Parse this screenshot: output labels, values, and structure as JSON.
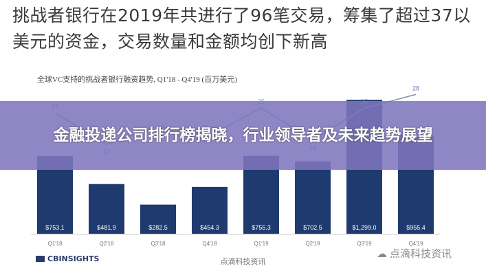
{
  "headline": "挑战者银行在2019年共进行了96笔交易，筹集了超过37以美元的资金，交易数量和金额均创下新高",
  "banner": "金融投递公司排行榜揭晓，行业领导者及未来趋势展望",
  "logo": "CBINSIGHTS",
  "center_watermark": "点滴科技资讯",
  "watermark": "点滴科技资讯",
  "chart_data": {
    "type": "bar",
    "title": "全球VC支持的挑战者银行融资趋势, Q1'18 - Q4'19 (百万美元)",
    "categories": [
      "Q1'18",
      "Q2'18",
      "Q3'18",
      "Q4'18",
      "Q1'19",
      "Q2'19",
      "Q3'19",
      "Q4'19"
    ],
    "series": [
      {
        "type": "bar",
        "values": [
          753.1,
          481.9,
          282.5,
          454.3,
          755.3,
          702.5,
          1299.0,
          955.4
        ],
        "labels": [
          "$753.1",
          "$481.9",
          "$282.5",
          "$454.3",
          "$755.3",
          "$702.5",
          "$1,299.0",
          "$955.4"
        ],
        "color": "#1f3a6e"
      },
      {
        "type": "line",
        "values": [
          24,
          17,
          21,
          19,
          25,
          18,
          25,
          28
        ],
        "labels": [
          "24",
          "17",
          "",
          "19",
          "25",
          "18",
          "25",
          "28"
        ],
        "color": "#7f8fb8"
      }
    ],
    "colors": {
      "banner": "#8075be",
      "bar": "#1f3a6e"
    }
  }
}
